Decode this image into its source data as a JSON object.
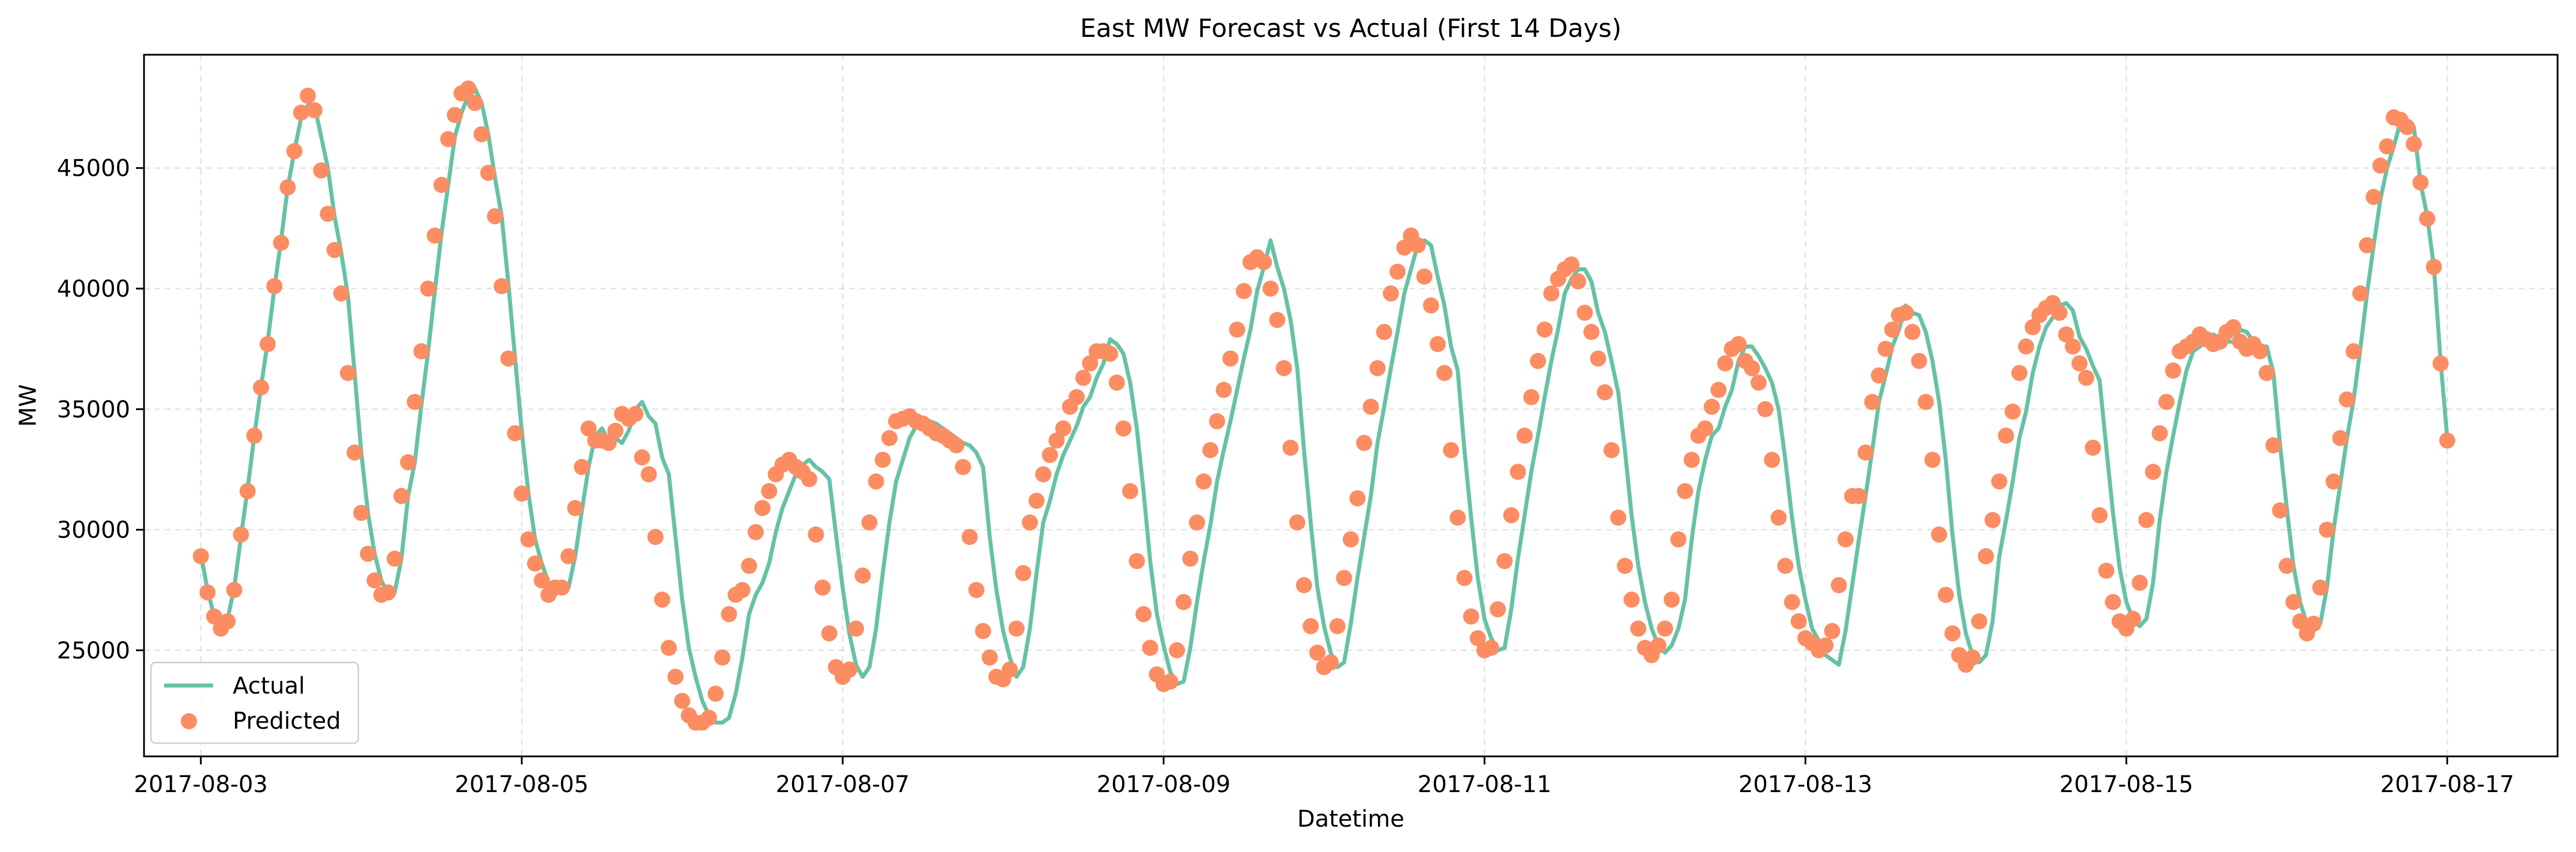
{
  "chart_data": {
    "type": "line",
    "title": "East MW Forecast vs Actual (First 14 Days)",
    "xlabel": "Datetime",
    "ylabel": "MW",
    "x_start": "2017-08-03 00:00",
    "x_step_hours": 1,
    "xlim": [
      "2017-08-02 15:30",
      "2017-08-17 16:30"
    ],
    "ylim": [
      20600,
      49700
    ],
    "x_ticks": [
      "2017-08-03",
      "2017-08-05",
      "2017-08-07",
      "2017-08-09",
      "2017-08-11",
      "2017-08-13",
      "2017-08-15",
      "2017-08-17"
    ],
    "y_ticks": [
      25000,
      30000,
      35000,
      40000,
      45000
    ],
    "y_tick_labels": [
      "25000",
      "30000",
      "35000",
      "40000",
      "45000"
    ],
    "grid": true,
    "legend_position": "lower-left",
    "series": [
      {
        "name": "Actual",
        "style": "line",
        "color": "#66c2a5",
        "values": [
          29000,
          27500,
          26400,
          26000,
          26300,
          27600,
          29700,
          31700,
          33900,
          35900,
          37800,
          40000,
          42000,
          44200,
          45700,
          47100,
          47600,
          47600,
          46300,
          45000,
          43000,
          41500,
          39700,
          36500,
          33200,
          30700,
          29000,
          27900,
          27300,
          27400,
          28800,
          31400,
          32800,
          35200,
          37400,
          39900,
          42300,
          44300,
          46300,
          47300,
          48000,
          48300,
          47700,
          46400,
          44600,
          43000,
          40200,
          37100,
          34100,
          31500,
          29600,
          28600,
          27800,
          27300,
          27600,
          27600,
          28900,
          30800,
          32600,
          33900,
          34200,
          33700,
          33800,
          33600,
          34100,
          35000,
          35300,
          34700,
          34400,
          33000,
          32300,
          29700,
          27100,
          25100,
          23900,
          22900,
          22300,
          22000,
          22000,
          22200,
          23200,
          24700,
          26500,
          27300,
          27800,
          28600,
          29900,
          30900,
          31600,
          32300,
          32700,
          32900,
          32600,
          32400,
          32100,
          29800,
          27600,
          25700,
          24400,
          23900,
          24300,
          25900,
          28200,
          30300,
          32000,
          32900,
          33800,
          34300,
          34600,
          34500,
          34400,
          34200,
          34000,
          33800,
          33600,
          33500,
          33200,
          32600,
          29700,
          27500,
          25800,
          24700,
          23900,
          24300,
          25900,
          28200,
          30300,
          31200,
          32300,
          33100,
          33700,
          34300,
          35100,
          35500,
          36300,
          36900,
          37900,
          37700,
          37300,
          36100,
          34200,
          31600,
          28700,
          26500,
          25200,
          24100,
          23600,
          23700,
          25100,
          27000,
          28700,
          30200,
          32000,
          33300,
          34500,
          35800,
          37100,
          38300,
          39900,
          40900,
          42000,
          40900,
          40000,
          38700,
          36700,
          33300,
          30300,
          27600,
          26000,
          24900,
          24300,
          24500,
          26100,
          28000,
          29700,
          31400,
          33600,
          35100,
          36700,
          38200,
          39800,
          40800,
          41800,
          42000,
          41800,
          40500,
          39300,
          37600,
          36600,
          33300,
          30500,
          28000,
          26300,
          25500,
          25000,
          25100,
          26700,
          28800,
          30600,
          32400,
          33900,
          35500,
          37000,
          38300,
          39800,
          40400,
          40800,
          40800,
          40300,
          39000,
          38200,
          37000,
          35700,
          33300,
          30600,
          28500,
          27000,
          25900,
          25200,
          24900,
          25200,
          25900,
          27100,
          29600,
          31600,
          32900,
          33900,
          34200,
          35100,
          35800,
          37000,
          37600,
          37600,
          37200,
          36700,
          36100,
          35000,
          32900,
          30500,
          28500,
          27100,
          25900,
          25400,
          24800,
          24600,
          24400,
          25800,
          27700,
          29600,
          31400,
          33300,
          35300,
          36400,
          37600,
          38300,
          39300,
          39000,
          38900,
          38200,
          37000,
          35300,
          32900,
          29800,
          27300,
          25700,
          24800,
          24500,
          24800,
          26200,
          28900,
          30400,
          32000,
          33800,
          34900,
          36500,
          37600,
          38400,
          38800,
          39300,
          39400,
          39100,
          38000,
          37500,
          36800,
          36200,
          33400,
          30700,
          28400,
          27000,
          26300,
          26000,
          26300,
          27800,
          30400,
          32400,
          33900,
          35300,
          36600,
          37400,
          37600,
          37800,
          38100,
          37900,
          37800,
          37800,
          38300,
          38200,
          37800,
          37600,
          37600,
          36500,
          33500,
          30900,
          28500,
          27000,
          26100,
          25800,
          26100,
          27600,
          30000,
          31900,
          33800,
          35400,
          37500,
          39800,
          41800,
          43700,
          45000,
          45900,
          46900,
          47000,
          46700,
          44400,
          43000,
          40900,
          37000,
          33800
        ]
      },
      {
        "name": "Predicted",
        "style": "markers",
        "color": "#fc8d62",
        "values": [
          28900,
          27400,
          26400,
          25900,
          26200,
          27500,
          29800,
          31600,
          33900,
          35900,
          37700,
          40100,
          41900,
          44200,
          45700,
          47300,
          48000,
          47400,
          44900,
          43100,
          41600,
          39800,
          36500,
          33200,
          30700,
          29000,
          27900,
          27300,
          27400,
          28800,
          31400,
          32800,
          35300,
          37400,
          40000,
          42200,
          44300,
          46200,
          47200,
          48100,
          48300,
          47700,
          46400,
          44800,
          43000,
          40100,
          37100,
          34000,
          31500,
          29600,
          28600,
          27900,
          27300,
          27600,
          27600,
          28900,
          30900,
          32600,
          34200,
          33700,
          33700,
          33600,
          34100,
          34800,
          34600,
          34800,
          33000,
          32300,
          29700,
          27100,
          25100,
          23900,
          22900,
          22300,
          22000,
          22000,
          22200,
          23200,
          24700,
          26500,
          27300,
          27500,
          28500,
          29900,
          30900,
          31600,
          32300,
          32700,
          32900,
          32600,
          32400,
          32100,
          29800,
          27600,
          25700,
          24300,
          23900,
          24200,
          25900,
          28100,
          30300,
          32000,
          32900,
          33800,
          34500,
          34600,
          34700,
          34500,
          34400,
          34200,
          34000,
          33900,
          33700,
          33500,
          32600,
          29700,
          27500,
          25800,
          24700,
          23900,
          23800,
          24200,
          25900,
          28200,
          30300,
          31200,
          32300,
          33100,
          33700,
          34200,
          35100,
          35500,
          36300,
          36900,
          37400,
          37400,
          37300,
          36100,
          34200,
          31600,
          28700,
          26500,
          25100,
          24000,
          23600,
          23700,
          25000,
          27000,
          28800,
          30300,
          32000,
          33300,
          34500,
          35800,
          37100,
          38300,
          39900,
          41100,
          41300,
          41100,
          40000,
          38700,
          36700,
          33400,
          30300,
          27700,
          26000,
          24900,
          24300,
          24500,
          26000,
          28000,
          29600,
          31300,
          33600,
          35100,
          36700,
          38200,
          39800,
          40700,
          41700,
          42200,
          41800,
          40500,
          39300,
          37700,
          36500,
          33300,
          30500,
          28000,
          26400,
          25500,
          25000,
          25100,
          26700,
          28700,
          30600,
          32400,
          33900,
          35500,
          37000,
          38300,
          39800,
          40400,
          40800,
          41000,
          40300,
          39000,
          38200,
          37100,
          35700,
          33300,
          30500,
          28500,
          27100,
          25900,
          25100,
          24800,
          25200,
          25900,
          27100,
          29600,
          31600,
          32900,
          33900,
          34200,
          35100,
          35800,
          36900,
          37500,
          37700,
          37000,
          36700,
          36100,
          35000,
          32900,
          30500,
          28500,
          27000,
          26200,
          25500,
          25300,
          25000,
          25200,
          25800,
          27700,
          29600,
          31400,
          31400,
          33200,
          35300,
          36400,
          37500,
          38300,
          38900,
          39000,
          38200,
          37000,
          35300,
          32900,
          29800,
          27300,
          25700,
          24800,
          24400,
          24700,
          26200,
          28900,
          30400,
          32000,
          33900,
          34900,
          36500,
          37600,
          38400,
          38900,
          39200,
          39400,
          39000,
          38100,
          37600,
          36900,
          36300,
          33400,
          30600,
          28300,
          27000,
          26200,
          25900,
          26300,
          27800,
          30400,
          32400,
          34000,
          35300,
          36600,
          37400,
          37600,
          37800,
          38100,
          37900,
          37700,
          37800,
          38200,
          38400,
          37800,
          37500,
          37700,
          37400,
          36500,
          33500,
          30800,
          28500,
          27000,
          26200,
          25700,
          26100,
          27600,
          30000,
          32000,
          33800,
          35400,
          37400,
          39800,
          41800,
          43800,
          45100,
          45900,
          47100,
          47000,
          46700,
          46000,
          44400,
          42900,
          40900,
          36900,
          33700
        ]
      }
    ]
  }
}
